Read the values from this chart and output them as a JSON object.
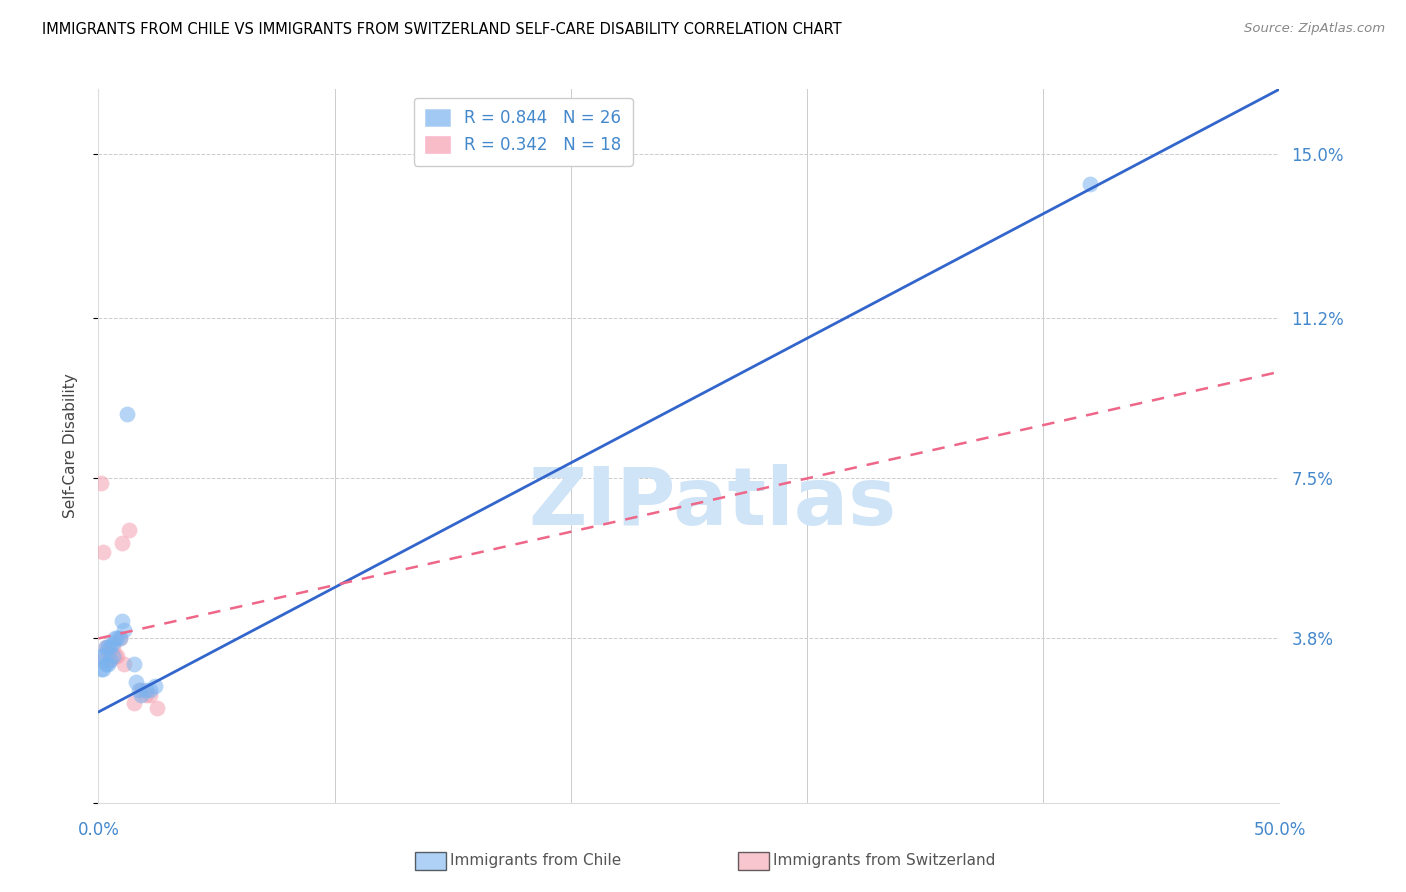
{
  "title": "IMMIGRANTS FROM CHILE VS IMMIGRANTS FROM SWITZERLAND SELF-CARE DISABILITY CORRELATION CHART",
  "source": "Source: ZipAtlas.com",
  "ylabel": "Self-Care Disability",
  "xlim": [
    0.0,
    0.5
  ],
  "ylim": [
    0.0,
    0.165
  ],
  "chile_R": 0.844,
  "chile_N": 26,
  "swiss_R": 0.342,
  "swiss_N": 18,
  "chile_color": "#7ab3ef",
  "swiss_color": "#f4a0b0",
  "chile_line_color": "#3366cc",
  "swiss_line_color": "#ee6688",
  "ytick_vals": [
    0.0,
    0.038,
    0.075,
    0.112,
    0.15
  ],
  "ytick_labels": [
    "",
    "3.8%",
    "7.5%",
    "11.2%",
    "15.0%"
  ],
  "xtick_vals": [
    0.0,
    0.1,
    0.2,
    0.3,
    0.4,
    0.5
  ],
  "xtick_labels_left": "0.0%",
  "xtick_labels_right": "50.0%",
  "chile_line_x0": 0.0,
  "chile_line_y0": 0.021,
  "chile_line_x1": 0.5,
  "chile_line_y1": 0.165,
  "swiss_line_x0": 0.0,
  "swiss_line_y0": 0.038,
  "swiss_line_x1": 0.3,
  "swiss_line_y1": 0.075,
  "chile_points_x": [
    0.001,
    0.001,
    0.002,
    0.002,
    0.003,
    0.003,
    0.004,
    0.004,
    0.005,
    0.005,
    0.006,
    0.006,
    0.007,
    0.008,
    0.009,
    0.01,
    0.011,
    0.012,
    0.015,
    0.016,
    0.017,
    0.018,
    0.02,
    0.022,
    0.024,
    0.42
  ],
  "chile_points_y": [
    0.031,
    0.034,
    0.031,
    0.034,
    0.032,
    0.036,
    0.032,
    0.036,
    0.033,
    0.036,
    0.034,
    0.037,
    0.038,
    0.038,
    0.038,
    0.042,
    0.04,
    0.09,
    0.032,
    0.028,
    0.026,
    0.025,
    0.026,
    0.026,
    0.027,
    0.143
  ],
  "swiss_points_x": [
    0.001,
    0.002,
    0.002,
    0.003,
    0.004,
    0.005,
    0.006,
    0.007,
    0.008,
    0.009,
    0.01,
    0.011,
    0.013,
    0.015,
    0.018,
    0.02,
    0.022,
    0.025
  ],
  "swiss_points_y": [
    0.074,
    0.058,
    0.033,
    0.036,
    0.035,
    0.033,
    0.036,
    0.034,
    0.034,
    0.038,
    0.06,
    0.032,
    0.063,
    0.023,
    0.026,
    0.025,
    0.025,
    0.022
  ],
  "watermark_text": "ZIPatlas",
  "watermark_color": "#d0e4f7",
  "grid_color": "#cccccc",
  "tick_color": "#4488cc",
  "marker_size": 130,
  "marker_alpha": 0.55
}
